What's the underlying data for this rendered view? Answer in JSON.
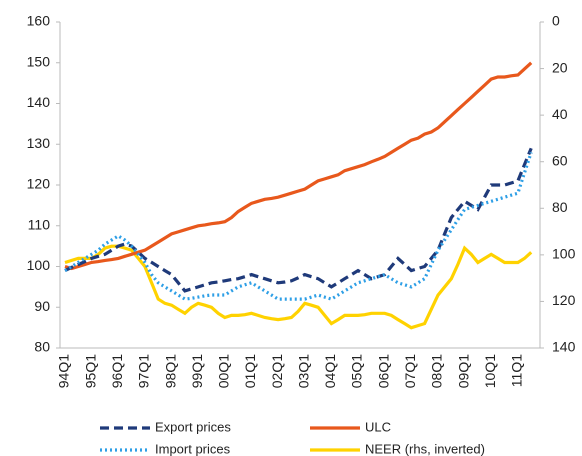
{
  "chart_data": {
    "type": "line",
    "categories": [
      "94Q1",
      null,
      null,
      null,
      "95Q1",
      null,
      null,
      null,
      "96Q1",
      null,
      null,
      null,
      "97Q1",
      null,
      null,
      null,
      "98Q1",
      null,
      null,
      null,
      "99Q1",
      null,
      null,
      null,
      "00Q1",
      null,
      null,
      null,
      "01Q1",
      null,
      null,
      null,
      "02Q1",
      null,
      null,
      null,
      "03Q1",
      null,
      null,
      null,
      "04Q1",
      null,
      null,
      null,
      "05Q1",
      null,
      null,
      null,
      "06Q1",
      null,
      null,
      null,
      "07Q1",
      null,
      null,
      null,
      "08Q1",
      null,
      null,
      null,
      "09Q1",
      null,
      null,
      null,
      "10Q1",
      null,
      null,
      null,
      "11Q1",
      null,
      null
    ],
    "ylim": [
      80,
      160
    ],
    "yticks": [
      80,
      90,
      100,
      110,
      120,
      130,
      140,
      150,
      160
    ],
    "y2lim": [
      0,
      140
    ],
    "y2ticks": [
      0,
      20,
      40,
      60,
      80,
      100,
      120,
      140
    ],
    "y2_inverted": true,
    "legend_position": "bottom",
    "series": [
      {
        "name": "Export prices",
        "color": "#1f3a7a",
        "dash": "dashed",
        "values": [
          99,
          99.8,
          100.5,
          101.2,
          102,
          102.5,
          103,
          104,
          105,
          105.5,
          105,
          103.5,
          102,
          101,
          100,
          99,
          98,
          96,
          94,
          94.5,
          95,
          95.5,
          96,
          96.2,
          96.5,
          96.8,
          97,
          97.5,
          98,
          97.5,
          97,
          96.5,
          96,
          96.2,
          96.5,
          97.2,
          98,
          97.5,
          97,
          96,
          95,
          96,
          97,
          98,
          99,
          98,
          97,
          97.5,
          98,
          100,
          102,
          100.5,
          99,
          99.5,
          100,
          102,
          104,
          108,
          112,
          114,
          116,
          115,
          114,
          117,
          120,
          120,
          120,
          120.5,
          121,
          125,
          129
        ]
      },
      {
        "name": "ULC",
        "color": "#e8581c",
        "dash": "solid",
        "values": [
          100,
          99.5,
          100,
          100.5,
          101,
          101.2,
          101.5,
          101.7,
          102,
          102.5,
          103,
          103.5,
          104,
          105,
          106,
          107,
          108,
          108.5,
          109,
          109.5,
          110,
          110.2,
          110.5,
          110.7,
          111,
          112,
          113.5,
          114.5,
          115.5,
          116,
          116.5,
          116.7,
          117,
          117.5,
          118,
          118.5,
          119,
          120,
          121,
          121.5,
          122,
          122.5,
          123.5,
          124,
          124.5,
          125,
          125.7,
          126.3,
          127,
          128,
          129,
          130,
          131,
          131.5,
          132.5,
          133,
          134,
          135.5,
          137,
          138.5,
          140,
          141.5,
          143,
          144.5,
          146,
          146.5,
          146.5,
          146.8,
          147,
          148.5,
          150
        ]
      },
      {
        "name": "Import prices",
        "color": "#2e9fe6",
        "dash": "dotted",
        "values": [
          99,
          100,
          101,
          102,
          103,
          104,
          105.5,
          106.5,
          107.5,
          106.5,
          105,
          103,
          101,
          98,
          96,
          95,
          94,
          93,
          92,
          92.2,
          92.5,
          92.8,
          93,
          93,
          93,
          94,
          95,
          95.5,
          96,
          95,
          94,
          93,
          92,
          92,
          92,
          92,
          92,
          92.5,
          93,
          92.5,
          92,
          93,
          94,
          95,
          96,
          96.5,
          97,
          97.5,
          98,
          97,
          96,
          95.5,
          95,
          96,
          97,
          100.5,
          104,
          106.5,
          109,
          111.5,
          114,
          114.5,
          115,
          115.5,
          116,
          116.5,
          117,
          117.5,
          118,
          123,
          128
        ]
      },
      {
        "name": "NEER (rhs, inverted)",
        "color": "#ffd200",
        "dash": "solid",
        "axis": "y2",
        "values": [
          103.3,
          102.4,
          101.5,
          101.5,
          101.5,
          99.8,
          97.1,
          96.3,
          96.3,
          97.1,
          98,
          101.5,
          105,
          112,
          119,
          120.8,
          121.6,
          123.4,
          125.1,
          122.5,
          120.8,
          121.6,
          122.5,
          125.1,
          126.9,
          126,
          126,
          125.7,
          125.1,
          126,
          126.9,
          127.4,
          127.8,
          127.4,
          126.9,
          124.3,
          120.8,
          121.6,
          122.5,
          126,
          129.5,
          127.8,
          126,
          126,
          126,
          125.7,
          125.1,
          125.1,
          125.1,
          126,
          127.8,
          129.5,
          131.3,
          130.4,
          129.5,
          123.4,
          117.3,
          113.8,
          110.3,
          104.1,
          97.1,
          99.8,
          103.3,
          101.5,
          99.8,
          101.5,
          103.3,
          103.3,
          103.3,
          101.5,
          98.9
        ]
      }
    ]
  }
}
